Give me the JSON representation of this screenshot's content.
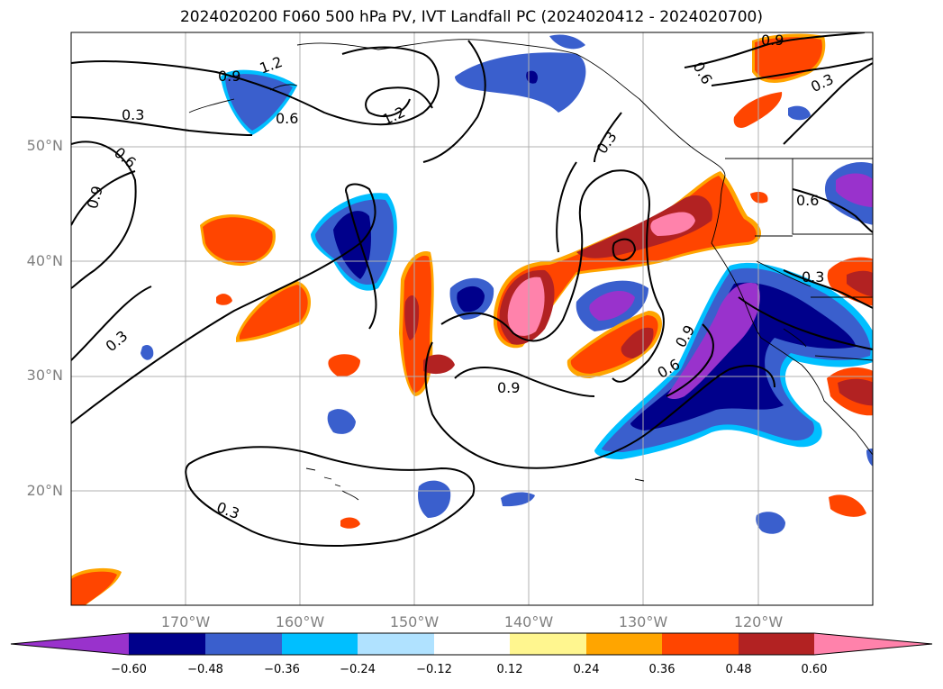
{
  "title": "2024020200 F060 500 hPa PV, IVT Landfall PC (2024020412 - 2024020700)",
  "lat_labels": [
    "50°N",
    "40°N",
    "30°N",
    "20°N"
  ],
  "lon_labels": [
    "170°W",
    "160°W",
    "150°W",
    "140°W",
    "130°W",
    "120°W"
  ],
  "contour_labels": [
    "1.2",
    "0.9",
    "0.6",
    "0.3",
    "1.2",
    "0.9",
    "0.6",
    "0.3",
    "0.9",
    "0.3",
    "0.6",
    "0.3",
    "0.9",
    "0.6",
    "0.9",
    "0.3",
    "0.6",
    "0.3"
  ],
  "colorbar": {
    "ticks": [
      "−0.60",
      "−0.48",
      "−0.36",
      "−0.24",
      "−0.12",
      "0.12",
      "0.24",
      "0.36",
      "0.48",
      "0.60"
    ],
    "colors": [
      "#9932cc",
      "#00008b",
      "#3a5fcd",
      "#00bfff",
      "#b0e2ff",
      "#ffffff",
      "#fff68f",
      "#ffa500",
      "#ff4500",
      "#b22222",
      "#ff82ab"
    ]
  },
  "chart_data": {
    "type": "heatmap",
    "title": "2024020200 F060 500 hPa PV, IVT Landfall PC (2024020412 - 2024020700)",
    "lon_range": [
      "180°W",
      "110°W"
    ],
    "lat_range": [
      "10°N",
      "60°N"
    ],
    "contour_levels": [
      0.3,
      0.6,
      0.9,
      1.2
    ],
    "colorbar_levels": [
      -0.6,
      -0.48,
      -0.36,
      -0.24,
      -0.12,
      0.12,
      0.24,
      0.36,
      0.48,
      0.6
    ],
    "grid": true
  }
}
